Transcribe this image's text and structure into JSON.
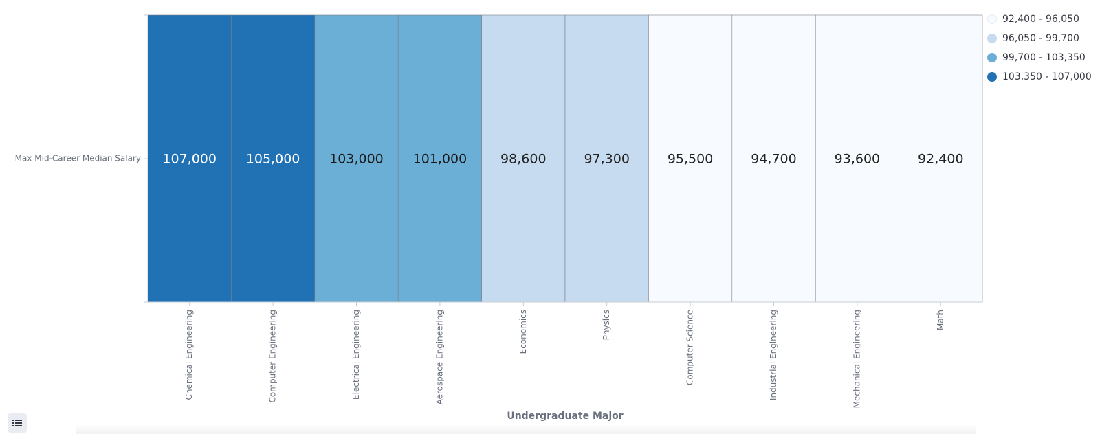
{
  "chart_data": {
    "type": "heatmap",
    "xlabel": "Undergraduate Major",
    "ylabel": "",
    "y_categories": [
      "Max Mid-Career Median Salary"
    ],
    "categories": [
      "Chemical Engineering",
      "Computer Engineering",
      "Electrical Engineering",
      "Aerospace Engineering",
      "Economics",
      "Physics",
      "Computer Science",
      "Industrial Engineering",
      "Mechanical Engineering",
      "Math"
    ],
    "values": [
      107000,
      105000,
      103000,
      101000,
      98600,
      97300,
      95500,
      94700,
      93600,
      92400
    ],
    "value_labels": [
      "107,000",
      "105,000",
      "103,000",
      "101,000",
      "98,600",
      "97,300",
      "95,500",
      "94,700",
      "93,600",
      "92,400"
    ],
    "legend": {
      "position": "top-right",
      "bins": [
        {
          "label": "92,400 - 96,050",
          "min": 92400,
          "max": 96050,
          "color": "#f7fbff",
          "text_color": "#222222"
        },
        {
          "label": "96,050 - 99,700",
          "min": 96050,
          "max": 99700,
          "color": "#c6dbef",
          "text_color": "#222222"
        },
        {
          "label": "99,700 - 103,350",
          "min": 99700,
          "max": 103350,
          "color": "#6baed6",
          "text_color": "#1a1a1a"
        },
        {
          "label": "103,350 - 107,000",
          "min": 103350,
          "max": 107000,
          "color": "#2171b5",
          "text_color": "#ffffff"
        }
      ]
    },
    "grid": false
  },
  "ui": {
    "legend_toggle_icon": "list-icon"
  }
}
